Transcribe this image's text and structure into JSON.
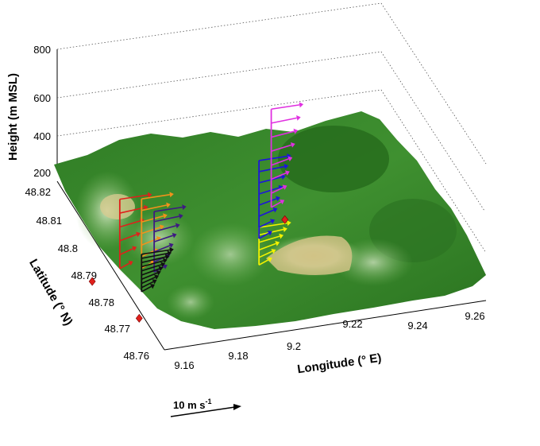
{
  "chart_data": {
    "type": "3d-surface-wind-profiles",
    "xlabel": "Longitude (° E)",
    "ylabel": "Latitude (° N)",
    "zlabel": "Height (m MSL)",
    "xticks": [
      "9.16",
      "9.18",
      "9.2",
      "9.22",
      "9.24",
      "9.26"
    ],
    "yticks": [
      "48.82",
      "48.81",
      "48.8",
      "48.79",
      "48.78",
      "48.77",
      "48.76"
    ],
    "zticks": [
      "200",
      "400",
      "600",
      "800"
    ],
    "xlim": [
      9.16,
      9.265
    ],
    "ylim": [
      48.76,
      48.823
    ],
    "zlim": [
      200,
      800
    ],
    "grid": true,
    "surface_colormap": [
      "#1f6b18",
      "#3b8f2c",
      "#73b25a",
      "#c9e0b0",
      "#c9ba7c"
    ],
    "scale_arrow": {
      "label": "10 m s",
      "superscript": "-1"
    },
    "profiles": [
      {
        "color": "#e0201b",
        "lon": 9.171,
        "lat": 48.806,
        "z0": 230,
        "z1": 470,
        "vectors": 6
      },
      {
        "color": "#f0921c",
        "lon": 9.177,
        "lat": 48.804,
        "z0": 240,
        "z1": 480,
        "vectors": 7
      },
      {
        "color": "#3e1a82",
        "lon": 9.18,
        "lat": 48.802,
        "z0": 240,
        "z1": 450,
        "vectors": 7
      },
      {
        "color": "#101010",
        "lon": 9.172,
        "lat": 48.795,
        "z0": 250,
        "z1": 380,
        "vectors": 10
      },
      {
        "color": "#f2f200",
        "lon": 9.212,
        "lat": 48.798,
        "z0": 250,
        "z1": 380,
        "vectors": 6
      },
      {
        "color": "#1c14dc",
        "lon": 9.217,
        "lat": 48.807,
        "z0": 250,
        "z1": 520,
        "vectors": 8
      },
      {
        "color": "#e030e0",
        "lon": 9.226,
        "lat": 48.816,
        "z0": 260,
        "z1": 600,
        "vectors": 8
      }
    ],
    "markers": [
      {
        "lon": 9.162,
        "lat": 48.806,
        "color": "#e0201b"
      },
      {
        "lon": 9.169,
        "lat": 48.791,
        "color": "#e0201b"
      },
      {
        "lon": 9.231,
        "lat": 48.817,
        "color": "#e0201b"
      }
    ]
  }
}
